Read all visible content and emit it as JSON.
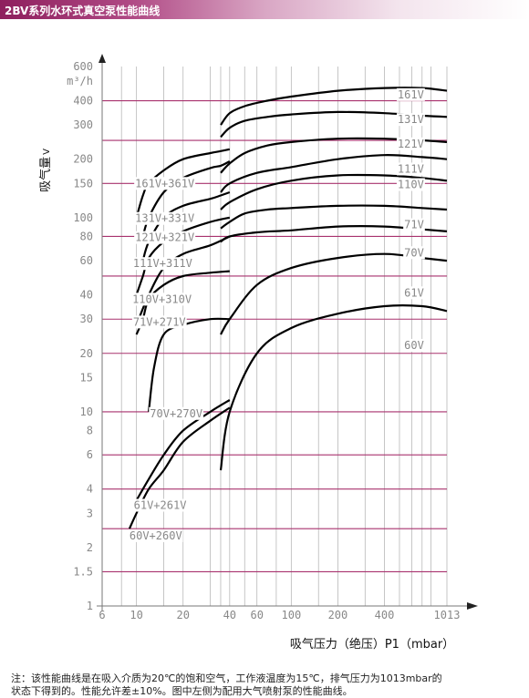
{
  "header": {
    "title": "2BV系列水环式真空泵性能曲线",
    "gradient_colors": [
      "#8e1f5d",
      "#b04a85",
      "#d9a6c4",
      "#ffffff"
    ]
  },
  "chart_data": {
    "type": "line",
    "x_scale": "log",
    "y_scale": "log",
    "ylabel": "吸气量",
    "ylabel_unit_mark": "V",
    "y_unit": "m³/h",
    "xlabel": "吸气压力（绝压）P1（mbar）",
    "xlim": [
      6,
      1013
    ],
    "ylim": [
      1,
      600
    ],
    "y_ticks": [
      {
        "value": 1,
        "label": "1"
      },
      {
        "value": 1.5,
        "label": "1.5"
      },
      {
        "value": 2,
        "label": "2"
      },
      {
        "value": 3,
        "label": "3"
      },
      {
        "value": 4,
        "label": "4"
      },
      {
        "value": 6,
        "label": "6"
      },
      {
        "value": 8,
        "label": "8"
      },
      {
        "value": 10,
        "label": "10"
      },
      {
        "value": 15,
        "label": "15"
      },
      {
        "value": 20,
        "label": "20"
      },
      {
        "value": 30,
        "label": "30"
      },
      {
        "value": 40,
        "label": "40"
      },
      {
        "value": 60,
        "label": "60"
      },
      {
        "value": 80,
        "label": "80"
      },
      {
        "value": 100,
        "label": "100"
      },
      {
        "value": 150,
        "label": "150"
      },
      {
        "value": 200,
        "label": "200"
      },
      {
        "value": 300,
        "label": "300"
      },
      {
        "value": 400,
        "label": "400"
      },
      {
        "value": 600,
        "label": "600"
      }
    ],
    "x_ticks": [
      {
        "value": 6,
        "label": "6"
      },
      {
        "value": 10,
        "label": "10"
      },
      {
        "value": 20,
        "label": "20"
      },
      {
        "value": 40,
        "label": "40"
      },
      {
        "value": 60,
        "label": "60"
      },
      {
        "value": 100,
        "label": "100"
      },
      {
        "value": 200,
        "label": "200"
      },
      {
        "value": 400,
        "label": "400"
      },
      {
        "value": 1013,
        "label": "1013"
      }
    ],
    "x_vertical_grid": [
      6,
      8,
      10,
      15,
      20,
      30,
      35,
      40,
      50,
      60,
      80,
      100,
      150,
      200,
      300,
      400,
      500,
      600,
      700,
      800,
      1013
    ],
    "horizontal_grid_lines": [
      1.5,
      2.5,
      4,
      6,
      10,
      20,
      30,
      50,
      80,
      150,
      250,
      400
    ],
    "grid": true,
    "colors": {
      "grid_vertical": "#b8b8b8",
      "grid_horizontal": "#a8326e",
      "curve": "#000000",
      "label_text": "#888888",
      "axis": "#777777"
    },
    "series": [
      {
        "name": "161V",
        "label_at": [
          720,
          430
        ],
        "points": [
          [
            35,
            300
          ],
          [
            40,
            345
          ],
          [
            50,
            375
          ],
          [
            70,
            400
          ],
          [
            100,
            420
          ],
          [
            200,
            450
          ],
          [
            400,
            465
          ],
          [
            700,
            465
          ],
          [
            1013,
            450
          ]
        ]
      },
      {
        "name": "131V",
        "label_at": [
          720,
          320
        ],
        "points": [
          [
            35,
            260
          ],
          [
            40,
            290
          ],
          [
            50,
            315
          ],
          [
            70,
            330
          ],
          [
            100,
            340
          ],
          [
            200,
            350
          ],
          [
            400,
            345
          ],
          [
            700,
            335
          ],
          [
            1013,
            330
          ]
        ]
      },
      {
        "name": "121V",
        "label_at": [
          720,
          240
        ],
        "points": [
          [
            35,
            170
          ],
          [
            40,
            190
          ],
          [
            50,
            215
          ],
          [
            70,
            235
          ],
          [
            100,
            245
          ],
          [
            200,
            255
          ],
          [
            400,
            255
          ],
          [
            700,
            250
          ],
          [
            1013,
            245
          ]
        ]
      },
      {
        "name": "111V",
        "label_at": [
          720,
          178
        ],
        "points": [
          [
            35,
            135
          ],
          [
            40,
            150
          ],
          [
            60,
            170
          ],
          [
            100,
            182
          ],
          [
            200,
            200
          ],
          [
            400,
            210
          ],
          [
            700,
            205
          ],
          [
            1013,
            200
          ]
        ]
      },
      {
        "name": "110V",
        "label_at": [
          720,
          148
        ],
        "points": [
          [
            35,
            110
          ],
          [
            40,
            120
          ],
          [
            60,
            140
          ],
          [
            100,
            155
          ],
          [
            200,
            165
          ],
          [
            400,
            165
          ],
          [
            700,
            160
          ],
          [
            1013,
            155
          ]
        ]
      },
      {
        "name": "71V",
        "label_at": [
          720,
          92
        ],
        "points": [
          [
            35,
            88
          ],
          [
            40,
            95
          ],
          [
            50,
            105
          ],
          [
            70,
            110
          ],
          [
            100,
            112
          ],
          [
            200,
            115
          ],
          [
            400,
            115
          ],
          [
            700,
            112
          ],
          [
            1013,
            110
          ]
        ]
      },
      {
        "name": "70V",
        "label_at": [
          720,
          66
        ],
        "points": [
          [
            35,
            75
          ],
          [
            40,
            80
          ],
          [
            60,
            84
          ],
          [
            100,
            86
          ],
          [
            200,
            90
          ],
          [
            400,
            90
          ],
          [
            700,
            87
          ],
          [
            1013,
            85
          ]
        ]
      },
      {
        "name": "61V",
        "label_at": [
          720,
          41
        ],
        "points": [
          [
            35,
            25
          ],
          [
            40,
            30
          ],
          [
            60,
            45
          ],
          [
            100,
            55
          ],
          [
            200,
            62
          ],
          [
            400,
            65
          ],
          [
            700,
            62
          ],
          [
            1013,
            60
          ]
        ]
      },
      {
        "name": "60V",
        "label_at": [
          720,
          22
        ],
        "points": [
          [
            35,
            5
          ],
          [
            40,
            10
          ],
          [
            60,
            20
          ],
          [
            100,
            27
          ],
          [
            200,
            32
          ],
          [
            400,
            35
          ],
          [
            700,
            35
          ],
          [
            1013,
            33
          ]
        ]
      },
      {
        "name": "161V+361V",
        "label_at": [
          9.8,
          150
        ],
        "points": [
          [
            10,
            100
          ],
          [
            11,
            130
          ],
          [
            12,
            150
          ],
          [
            15,
            175
          ],
          [
            20,
            200
          ],
          [
            30,
            215
          ],
          [
            35,
            220
          ],
          [
            40,
            225
          ]
        ]
      },
      {
        "name": "131V+331V",
        "label_at": [
          9.8,
          99
        ],
        "points": [
          [
            11,
            80
          ],
          [
            12,
            100
          ],
          [
            15,
            135
          ],
          [
            20,
            160
          ],
          [
            30,
            180
          ],
          [
            35,
            185
          ],
          [
            40,
            195
          ]
        ]
      },
      {
        "name": "121V+321V",
        "label_at": [
          9.8,
          79
        ],
        "points": [
          [
            11,
            60
          ],
          [
            12,
            75
          ],
          [
            15,
            100
          ],
          [
            20,
            115
          ],
          [
            30,
            125
          ],
          [
            35,
            130
          ],
          [
            40,
            135
          ]
        ]
      },
      {
        "name": "111V+311V",
        "label_at": [
          9.5,
          58
        ],
        "points": [
          [
            10,
            40
          ],
          [
            11,
            50
          ],
          [
            12,
            62
          ],
          [
            15,
            75
          ],
          [
            20,
            85
          ],
          [
            30,
            95
          ],
          [
            40,
            100
          ]
        ]
      },
      {
        "name": "110V+310V",
        "label_at": [
          9.4,
          38
        ],
        "points": [
          [
            10,
            28
          ],
          [
            12,
            40
          ],
          [
            15,
            55
          ],
          [
            20,
            65
          ],
          [
            30,
            72
          ],
          [
            40,
            80
          ]
        ]
      },
      {
        "name": "71V+271V",
        "label_at": [
          9.5,
          29
        ],
        "points": [
          [
            10,
            25
          ],
          [
            11,
            30
          ],
          [
            12,
            38
          ],
          [
            15,
            45
          ],
          [
            20,
            50
          ],
          [
            30,
            52
          ],
          [
            40,
            53
          ]
        ]
      },
      {
        "name": "70V+270V",
        "label_at": [
          12.2,
          9.8
        ],
        "points": [
          [
            12,
            10
          ],
          [
            13,
            17
          ],
          [
            15,
            25
          ],
          [
            20,
            28
          ],
          [
            30,
            30
          ],
          [
            40,
            30
          ]
        ]
      },
      {
        "name": "61V+261V",
        "label_at": [
          9.6,
          3.3
        ],
        "points": [
          [
            10,
            3.5
          ],
          [
            12,
            4.5
          ],
          [
            15,
            6
          ],
          [
            20,
            8
          ],
          [
            30,
            10
          ],
          [
            40,
            11.5
          ]
        ]
      },
      {
        "name": "60V+260V",
        "label_at": [
          9.0,
          2.3
        ],
        "points": [
          [
            9,
            2.5
          ],
          [
            10,
            3
          ],
          [
            12,
            4
          ],
          [
            15,
            5
          ],
          [
            20,
            7
          ],
          [
            30,
            9
          ],
          [
            40,
            10.5
          ]
        ]
      }
    ]
  },
  "note": {
    "line1": "注：该性能曲线是在吸入介质为20℃的饱和空气，工作液温度为15℃，排气压力为1013mbar的",
    "line2": "状态下得到的。性能允许差±10%。图中左侧为配用大气喷射泵的性能曲线。"
  }
}
